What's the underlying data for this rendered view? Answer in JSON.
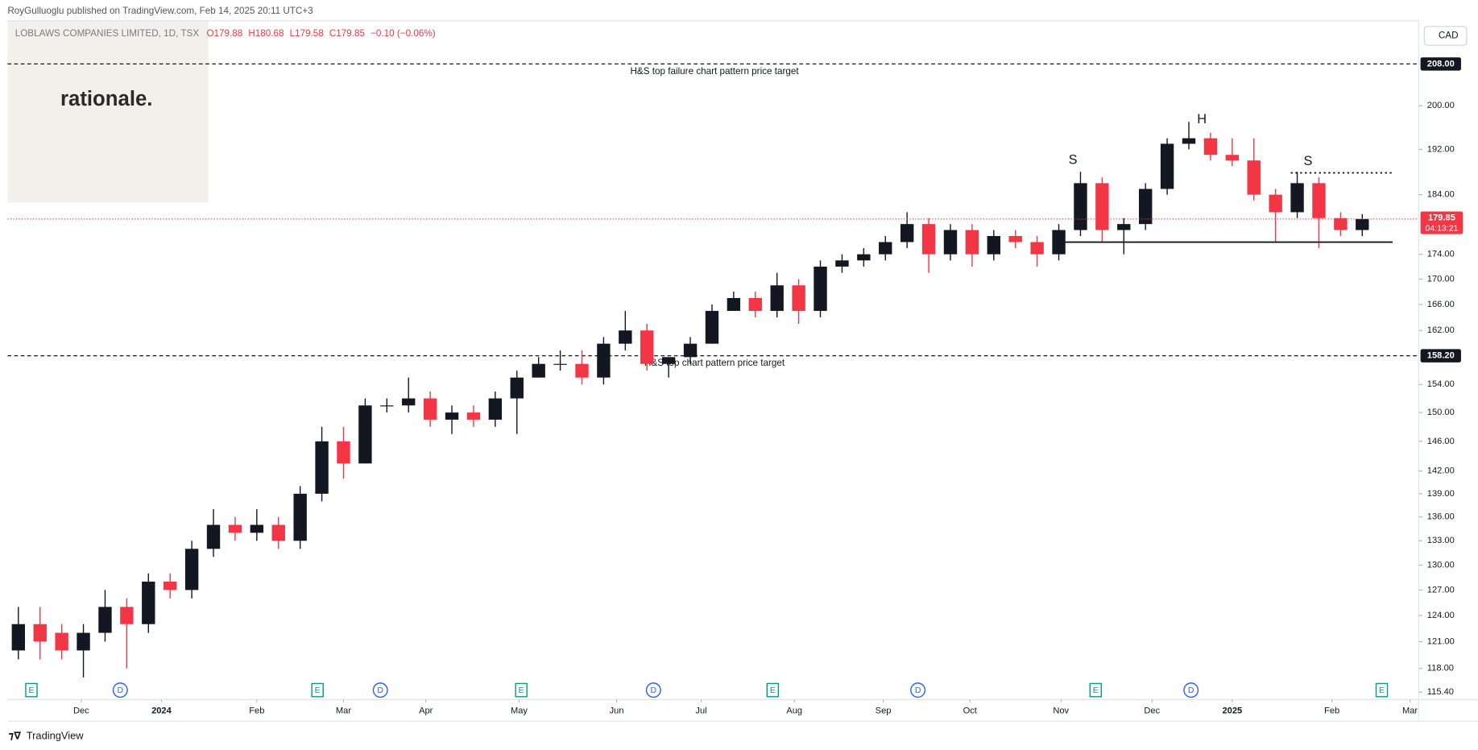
{
  "chart_data": {
    "type": "candlestick",
    "header": "RoyGulluoglu published on TradingView.com, Feb 14, 2025 20:11 UTC+3",
    "symbol": "LOBLAWS COMPANIES LIMITED, 1D, TSX",
    "legend_values": [
      "O179.88",
      "H180.68",
      "L179.58",
      "C179.85",
      "−0.10 (−0.06%)"
    ],
    "currency": "CAD",
    "logo": "rationale.",
    "footer": "TradingView",
    "log_scale": true,
    "grid": false,
    "up_color": "#131722",
    "down_color": "#f23645",
    "x": [
      0,
      1,
      2,
      3,
      4,
      5,
      6,
      7,
      8,
      9,
      10,
      11,
      12,
      13,
      14,
      15,
      16,
      17,
      18,
      19,
      20,
      21,
      22,
      23,
      24,
      25,
      26,
      27,
      28,
      29,
      30,
      31,
      32,
      33,
      34,
      35,
      36,
      37,
      38,
      39,
      40,
      41,
      42,
      43,
      44,
      45,
      46,
      47,
      48,
      49,
      50,
      51,
      52,
      53,
      54,
      55,
      56,
      57,
      58,
      59,
      60,
      61,
      62
    ],
    "open": [
      120,
      123,
      122,
      120,
      122,
      125,
      123,
      128,
      127,
      132,
      135,
      134,
      135,
      133,
      139,
      146,
      143,
      151,
      151,
      152,
      149,
      150,
      149,
      152,
      155,
      157,
      157,
      155,
      160,
      162,
      157,
      158,
      160,
      165,
      167,
      165,
      169,
      165,
      172,
      173,
      174,
      176,
      179,
      174,
      178,
      174,
      177,
      176,
      174,
      178,
      186,
      178,
      179,
      185,
      193,
      194,
      191,
      190,
      184,
      181,
      186,
      180,
      178
    ],
    "high": [
      125,
      125,
      123,
      123,
      127,
      126,
      129,
      129,
      133,
      137,
      136,
      137,
      136,
      140,
      148,
      148,
      152,
      152,
      155,
      153,
      151,
      151,
      153,
      156,
      158,
      159,
      159,
      161,
      165,
      163,
      158,
      161,
      166,
      168,
      168,
      171,
      170,
      173,
      174,
      175,
      177,
      181,
      180,
      179,
      179,
      178,
      178,
      177,
      179,
      188,
      187,
      180,
      186,
      194,
      197,
      195,
      194,
      194,
      185,
      188,
      187,
      181,
      180.68
    ],
    "low": [
      119,
      119,
      119,
      117,
      121,
      118,
      122,
      126,
      126,
      131,
      133,
      133,
      132,
      132,
      138,
      141,
      143,
      150,
      150,
      148,
      147,
      148,
      148,
      147,
      155,
      156,
      154,
      154,
      159,
      156,
      155,
      157,
      160,
      165,
      164,
      164,
      163,
      164,
      171,
      172,
      173,
      175,
      171,
      173,
      172,
      173,
      175,
      172,
      173,
      177,
      176,
      174,
      178,
      184,
      192,
      190,
      189,
      183,
      176,
      180,
      175,
      177,
      177
    ],
    "close": [
      123,
      121,
      120,
      122,
      125,
      123,
      128,
      127,
      132,
      135,
      134,
      135,
      133,
      139,
      146,
      143,
      151,
      151,
      152,
      149,
      150,
      149,
      152,
      155,
      157,
      157,
      155,
      160,
      162,
      157,
      158,
      160,
      165,
      167,
      165,
      169,
      165,
      172,
      173,
      174,
      176,
      179,
      174,
      178,
      174,
      177,
      176,
      174,
      178,
      186,
      178,
      179,
      185,
      193,
      194,
      191,
      190,
      184,
      181,
      186,
      180,
      178,
      179.85
    ],
    "xlim": [
      -0.5,
      64.6
    ],
    "ylim": [
      114.6,
      216.6
    ],
    "xticks": [
      {
        "value": 2.9,
        "label": "Dec"
      },
      {
        "value": 6.6,
        "label": "2024"
      },
      {
        "value": 11.0,
        "label": "Feb"
      },
      {
        "value": 15.0,
        "label": "Mar"
      },
      {
        "value": 18.8,
        "label": "Apr"
      },
      {
        "value": 23.1,
        "label": "May"
      },
      {
        "value": 27.6,
        "label": "Jun"
      },
      {
        "value": 31.5,
        "label": "Jul"
      },
      {
        "value": 35.8,
        "label": "Aug"
      },
      {
        "value": 39.9,
        "label": "Sep"
      },
      {
        "value": 43.9,
        "label": "Oct"
      },
      {
        "value": 48.1,
        "label": "Nov"
      },
      {
        "value": 52.3,
        "label": "Dec"
      },
      {
        "value": 56.0,
        "label": "2025"
      },
      {
        "value": 60.6,
        "label": "Feb"
      },
      {
        "value": 64.2,
        "label": "Mar"
      }
    ],
    "yticks": [
      {
        "value": 200,
        "label": "200.00"
      },
      {
        "value": 192,
        "label": "192.00"
      },
      {
        "value": 184,
        "label": "184.00"
      },
      {
        "value": 174,
        "label": "174.00"
      },
      {
        "value": 170,
        "label": "170.00"
      },
      {
        "value": 166,
        "label": "166.00"
      },
      {
        "value": 162,
        "label": "162.00"
      },
      {
        "value": 154,
        "label": "154.00"
      },
      {
        "value": 150,
        "label": "150.00"
      },
      {
        "value": 146,
        "label": "146.00"
      },
      {
        "value": 142,
        "label": "142.00"
      },
      {
        "value": 139,
        "label": "139.00"
      },
      {
        "value": 136,
        "label": "136.00"
      },
      {
        "value": 133,
        "label": "133.00"
      },
      {
        "value": 130,
        "label": "130.00"
      },
      {
        "value": 127,
        "label": "127.00"
      },
      {
        "value": 124,
        "label": "124.00"
      },
      {
        "value": 121,
        "label": "121.00"
      },
      {
        "value": 118,
        "label": "118.00"
      },
      {
        "value": 115.4,
        "label": "115.40"
      }
    ],
    "price_lines": [
      {
        "value": 208,
        "label": "208.00",
        "text": "H&S top failure chart pattern price target"
      },
      {
        "value": 158.2,
        "label": "158.20",
        "text": "H&S top chart pattern price target"
      }
    ],
    "last_price": {
      "value": 179.85,
      "label": "179.85",
      "countdown": "04:13:21"
    },
    "neckline": {
      "value": 176,
      "x": [
        48.3,
        63.4
      ]
    },
    "resistance": {
      "value": 187.8,
      "x": [
        58.7,
        63.4
      ]
    },
    "pattern_labels": [
      {
        "text": "S",
        "x": 48.65,
        "y": 190
      },
      {
        "text": "H",
        "x": 54.6,
        "y": 197.4
      },
      {
        "text": "S",
        "x": 59.5,
        "y": 189.8
      }
    ],
    "events": [
      {
        "label": "E",
        "x": 0.6
      },
      {
        "label": "D",
        "x": 4.7
      },
      {
        "label": "E",
        "x": 13.8
      },
      {
        "label": "D",
        "x": 16.7
      },
      {
        "label": "E",
        "x": 23.2
      },
      {
        "label": "D",
        "x": 29.3
      },
      {
        "label": "E",
        "x": 34.8
      },
      {
        "label": "D",
        "x": 41.5
      },
      {
        "label": "E",
        "x": 49.7
      },
      {
        "label": "D",
        "x": 54.1
      },
      {
        "label": "E",
        "x": 62.9
      }
    ]
  }
}
